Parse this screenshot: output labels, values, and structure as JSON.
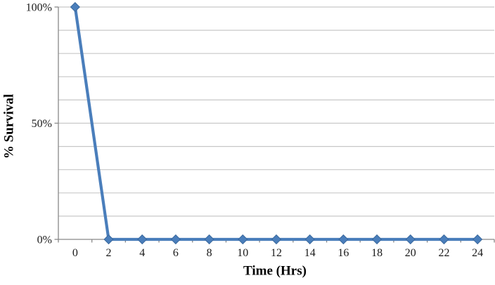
{
  "chart_data": {
    "type": "line",
    "x": [
      0,
      2,
      4,
      6,
      8,
      10,
      12,
      14,
      16,
      18,
      20,
      22,
      24
    ],
    "x_tick_labels": [
      "0",
      "2",
      "4",
      "6",
      "8",
      "10",
      "12",
      "14",
      "16",
      "18",
      "20",
      "22",
      "24"
    ],
    "series": [
      {
        "name": "% Survival",
        "values": [
          100,
          0,
          0,
          0,
          0,
          0,
          0,
          0,
          0,
          0,
          0,
          0,
          0
        ]
      }
    ],
    "title": "",
    "xlabel": "Time (Hrs)",
    "ylabel": "% Survival",
    "ylim": [
      0,
      100
    ],
    "yticks": [
      {
        "value": 0,
        "label": "0%"
      },
      {
        "value": 50,
        "label": "50%"
      },
      {
        "value": 100,
        "label": "100%"
      }
    ],
    "y_gridline_step": 10,
    "grid": true,
    "legend_position": "none",
    "marker": "diamond",
    "colors": {
      "line": "#4a7ebb",
      "marker_fill": "#4a7ebb",
      "marker_border": "#3a699e",
      "gridline": "#c8c8c8",
      "axis": "#898989",
      "text": "#1a1a1a",
      "background": "#ffffff"
    }
  }
}
